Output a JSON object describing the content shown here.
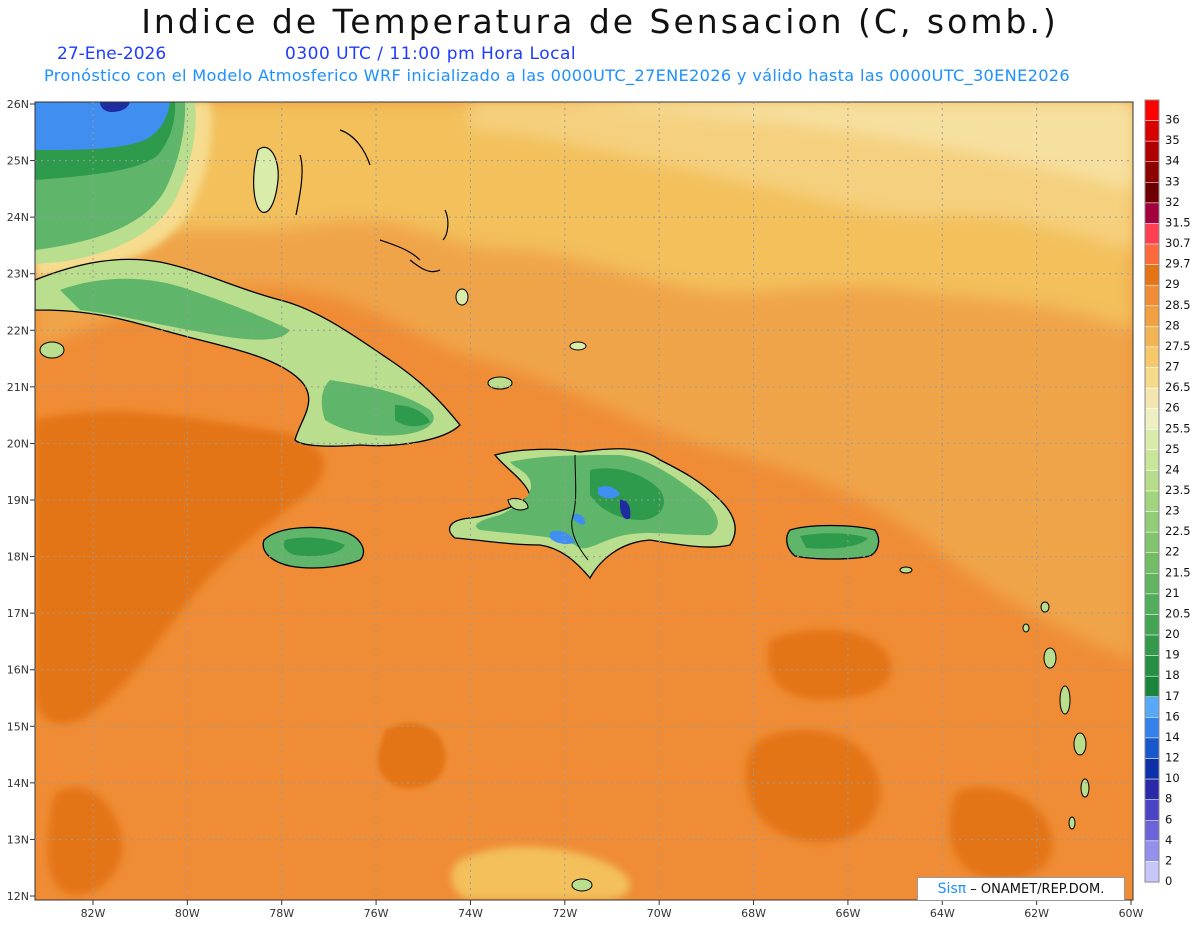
{
  "header": {
    "title": "Indice de Temperatura de Sensacion (C, somb.)",
    "date": "27-Ene-2026",
    "time": "0300 UTC / 11:00 pm Hora Local",
    "subtitle": "Pronóstico con el Modelo Atmosferico WRF inicializado a las 0000UTC_27ENE2026 y válido hasta las  0000UTC_30ENE2026"
  },
  "map": {
    "lon_labels": [
      "82W",
      "80W",
      "78W",
      "76W",
      "74W",
      "72W",
      "70W",
      "68W",
      "66W",
      "64W",
      "62W",
      "60W"
    ],
    "lat_labels": [
      "26N",
      "25N",
      "24N",
      "23N",
      "22N",
      "21N",
      "20N",
      "19N",
      "18N",
      "17N",
      "16N",
      "15N",
      "14N",
      "13N",
      "12N"
    ],
    "colors": {
      "sea_warm": "#ef8c35",
      "sea_hot": "#e47414",
      "sea_mild": "#f0a448",
      "sea_cool": "#f3c05c",
      "sea_cold": "#f6dc8e",
      "land_green": "#5fb56a",
      "land_light": "#b9de8e",
      "land_dark": "#2e9a4c",
      "cold_blue": "#3f8ef0",
      "cold_navy": "#1e2ca0"
    }
  },
  "legend": {
    "labels": [
      "36",
      "35",
      "34",
      "33",
      "32",
      "31.5",
      "30.7",
      "29.7",
      "29",
      "28.5",
      "28",
      "27.5",
      "27",
      "26.5",
      "26",
      "25.5",
      "25",
      "24",
      "23.5",
      "23",
      "22.5",
      "22",
      "21.5",
      "21",
      "20.5",
      "20",
      "19",
      "18",
      "17",
      "16",
      "14",
      "12",
      "10",
      "8",
      "6",
      "4",
      "2",
      "0"
    ],
    "colors": [
      "#ff0000",
      "#d90000",
      "#b00000",
      "#8c0000",
      "#6e0000",
      "#a30040",
      "#ff3f54",
      "#ff6a3a",
      "#e47414",
      "#ef8c35",
      "#f0a040",
      "#f3b455",
      "#f5c86a",
      "#f5da8a",
      "#f3e6b0",
      "#eef0c4",
      "#d9ecaa",
      "#c8e69a",
      "#b4dc8a",
      "#a2d47e",
      "#92cc76",
      "#82c46e",
      "#72bc66",
      "#62b460",
      "#52ac5a",
      "#44a454",
      "#35994c",
      "#278f44",
      "#1a853c",
      "#58a8f8",
      "#3480ec",
      "#1858cc",
      "#0c30a8",
      "#2a2aa8",
      "#4a44c4",
      "#6a64d8",
      "#9290e8",
      "#c6c6f8"
    ]
  },
  "credit": {
    "sis": "Sisπ",
    "text": " – ONAMET/REP.DOM."
  }
}
